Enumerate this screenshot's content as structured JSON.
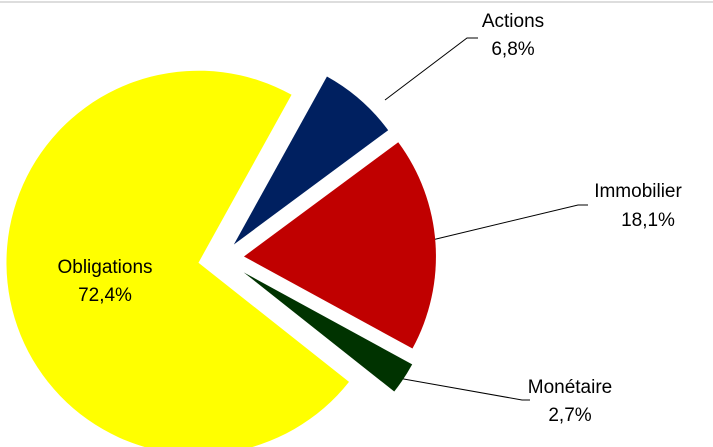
{
  "chart_data": {
    "type": "pie",
    "categories": [
      "Actions",
      "Immobilier",
      "Monétaire",
      "Obligations"
    ],
    "values": [
      6.8,
      18.1,
      2.7,
      72.4
    ],
    "value_labels": [
      "6,8%",
      "18,1%",
      "2,7%",
      "72,4%"
    ],
    "colors": [
      "#002060",
      "#c00000",
      "#003300",
      "#ffff00"
    ]
  }
}
